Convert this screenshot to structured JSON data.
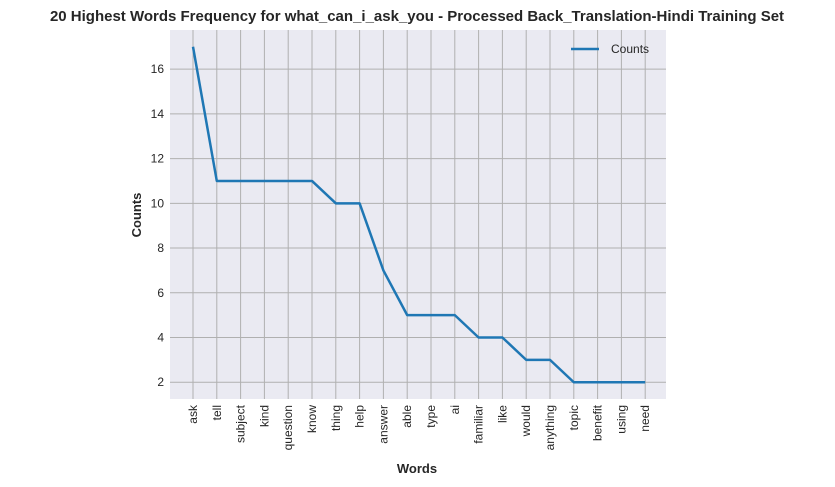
{
  "chart_data": {
    "type": "line",
    "title": "20 Highest Words Frequency for what_can_i_ask_you - Processed Back_Translation-Hindi Training Set",
    "xlabel": "Words",
    "ylabel": "Counts",
    "categories": [
      "ask",
      "tell",
      "subject",
      "kind",
      "question",
      "know",
      "thing",
      "help",
      "answer",
      "able",
      "type",
      "ai",
      "familiar",
      "like",
      "would",
      "anything",
      "topic",
      "benefit",
      "using",
      "need"
    ],
    "series": [
      {
        "name": "Counts",
        "values": [
          17,
          11,
          11,
          11,
          11,
          11,
          10,
          10,
          7,
          5,
          5,
          5,
          4,
          4,
          3,
          3,
          2,
          2,
          2,
          2
        ],
        "color": "#1f77b4"
      }
    ],
    "yticks": [
      2,
      4,
      6,
      8,
      10,
      12,
      14,
      16
    ],
    "ylim": [
      1.25,
      17.75
    ],
    "grid": true,
    "legend": "top-right",
    "background": "#eaeaf2",
    "grid_color": "#b0b0b0"
  }
}
